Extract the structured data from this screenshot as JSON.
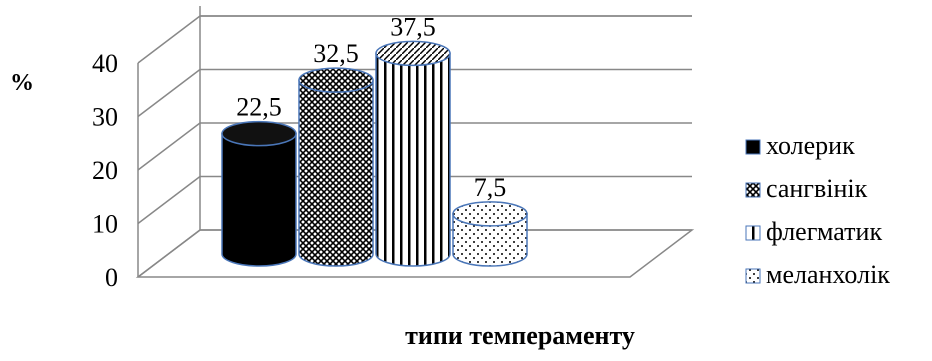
{
  "chart_data": {
    "type": "bar",
    "style": "3d-cylinder",
    "categories": [
      "холерик",
      "сангвінік",
      "флегматик",
      "меланхолік"
    ],
    "values": [
      22.5,
      32.5,
      37.5,
      7.5
    ],
    "data_labels": [
      "22,5",
      "32,5",
      "37,5",
      "7,5"
    ],
    "title": "",
    "xlabel": "типи темпераменту",
    "ylabel": "%",
    "ylim": [
      0,
      40
    ],
    "yticks": [
      "0",
      "10",
      "20",
      "30",
      "40"
    ],
    "grid": true,
    "legend_position": "right",
    "legend": [
      {
        "label": "холерик",
        "pattern": "solid-black"
      },
      {
        "label": "сангвінік",
        "pattern": "crosshatch"
      },
      {
        "label": "флегматик",
        "pattern": "vertical-lines"
      },
      {
        "label": "меланхолік",
        "pattern": "dots"
      }
    ],
    "colors": {
      "outline": "#4a76b8",
      "grid": "#888888",
      "text": "#000000"
    }
  }
}
